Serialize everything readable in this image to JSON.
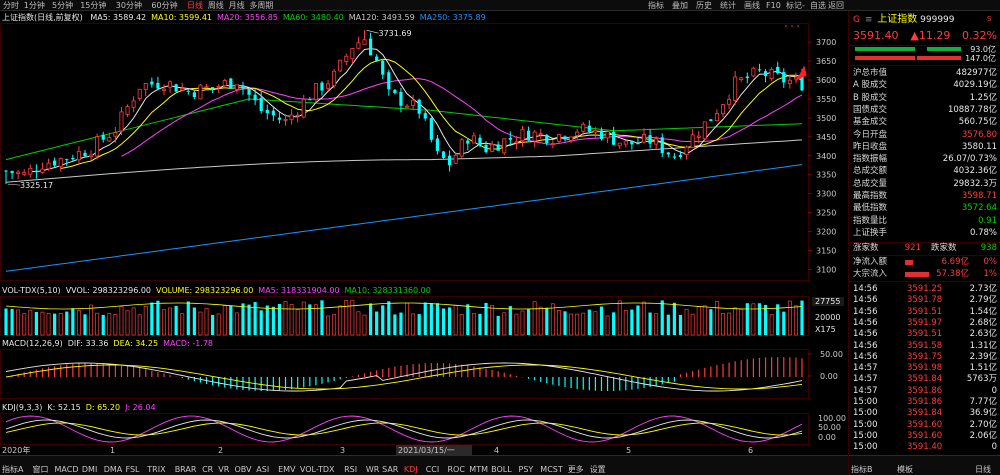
{
  "toolbar": {
    "periods": [
      "分时",
      "1分钟",
      "5分钟",
      "15分钟",
      "30分钟",
      "60分钟",
      "日线",
      "周线",
      "月线",
      "多周期"
    ],
    "active_period": "日线",
    "right_items": [
      "指标",
      "叠加",
      "历史",
      "统计",
      "画线",
      "F10",
      "标记",
      "-",
      "自选",
      "返回"
    ]
  },
  "main_chart": {
    "title": "上证指数(日线,前复权)",
    "ma": [
      {
        "label": "MA5: 3589.42",
        "color": "#e8e8e8"
      },
      {
        "label": "MA10: 3599.41",
        "color": "#ffff00"
      },
      {
        "label": "MA20: 3556.85",
        "color": "#ff40ff"
      },
      {
        "label": "MA60: 3480.40",
        "color": "#00d000"
      },
      {
        "label": "MA120: 3493.59",
        "color": "#c8c8c8"
      },
      {
        "label": "MA250: 3375.89",
        "color": "#1e90ff"
      }
    ],
    "high_label": "3731.69",
    "low_label": "3325.17",
    "y_ticks": [
      "3700",
      "3650",
      "3600",
      "3550",
      "3500",
      "3450",
      "3400",
      "3350",
      "3300",
      "3250",
      "3200",
      "3150",
      "3100"
    ]
  },
  "volume": {
    "legend": [
      {
        "label": "VOL-TDX(5,10)",
        "color": "#e8e8e8"
      },
      {
        "label": "VVOL: 298323296.00",
        "color": "#e8e8e8"
      },
      {
        "label": "VOLUME: 298323296.00",
        "color": "#ffff00"
      },
      {
        "label": "MA5: 318331904.00",
        "color": "#ff40ff"
      },
      {
        "label": "MA10: 328331360.00",
        "color": "#00d000"
      }
    ],
    "y_ticks": [
      "27755",
      "20000",
      "X175"
    ]
  },
  "macd": {
    "legend": [
      {
        "label": "MACD(12,26,9)",
        "color": "#e8e8e8"
      },
      {
        "label": "DIF: 33.36",
        "color": "#e8e8e8"
      },
      {
        "label": "DEA: 34.25",
        "color": "#ffff00"
      },
      {
        "label": "MACD: -1.78",
        "color": "#ff40ff"
      }
    ],
    "y_ticks": [
      "50.00",
      "0.00"
    ]
  },
  "kdj": {
    "legend": [
      {
        "label": "KDJ(9,3,3)",
        "color": "#e8e8e8"
      },
      {
        "label": "K: 52.15",
        "color": "#e8e8e8"
      },
      {
        "label": "D: 65.20",
        "color": "#ffff00"
      },
      {
        "label": "J: 26.04",
        "color": "#ff40ff"
      }
    ],
    "y_ticks": [
      "100.00",
      "50.00",
      "0.00"
    ]
  },
  "x_axis": {
    "labels": [
      "2020年",
      "1",
      "2",
      "3",
      "2021/03/15/一",
      "4",
      "5",
      "6"
    ]
  },
  "indicator_tabs": [
    "指标A",
    "窗口",
    "MACD",
    "DMI",
    "DMA",
    "FSL",
    "TRIX",
    "BRAR",
    "CR",
    "VR",
    "OBV",
    "ASI",
    "EMV",
    "VOL-TDX",
    "RSI",
    "WR",
    "SAR",
    "KDJ",
    "CCI",
    "ROC",
    "MTM",
    "BOLL",
    "PSY",
    "MCST",
    "更多",
    "设置"
  ],
  "active_tab": "KDJ",
  "panel": {
    "header_left": "G",
    "title": "上证指数",
    "code": "999999",
    "price": "3591.40",
    "change": "▲11.29",
    "change_pct": "0.32%",
    "bar1_value": "93.0亿",
    "bar2_value": "147.0亿",
    "stats": [
      {
        "label": "沪总市值",
        "value": "482977亿",
        "color": "#e8e8e8"
      },
      {
        "label": "A 股成交",
        "value": "4029.19亿",
        "color": "#e8e8e8"
      },
      {
        "label": "B 股成交",
        "value": "1.25亿",
        "color": "#e8e8e8"
      },
      {
        "label": "国债成交",
        "value": "10887.78亿",
        "color": "#e8e8e8"
      },
      {
        "label": "基金成交",
        "value": "560.75亿",
        "color": "#e8e8e8"
      },
      {
        "label": "今日开盘",
        "value": "3576.80",
        "color": "#ff3b3b"
      },
      {
        "label": "昨日收盘",
        "value": "3580.11",
        "color": "#e8e8e8"
      },
      {
        "label": "指数振幅",
        "value": "26.07/0.73%",
        "color": "#e8e8e8"
      },
      {
        "label": "总成交额",
        "value": "4032.36亿",
        "color": "#e8e8e8"
      },
      {
        "label": "总成交量",
        "value": "29832.3万",
        "color": "#e8e8e8"
      },
      {
        "label": "最高指数",
        "value": "3598.71",
        "color": "#ff3b3b"
      },
      {
        "label": "最低指数",
        "value": "3572.64",
        "color": "#00d000"
      },
      {
        "label": "指数量比",
        "value": "0.91",
        "color": "#00d000"
      },
      {
        "label": "上证换手",
        "value": "0.78%",
        "color": "#e8e8e8"
      }
    ],
    "rise_label": "涨家数",
    "rise": "921",
    "fall_label": "跌家数",
    "fall": "938",
    "flow": [
      {
        "label": "净流入额",
        "value": "6.69亿",
        "pct": "0%",
        "bar": 0.25
      },
      {
        "label": "大宗流入",
        "value": "57.38亿",
        "pct": "1%",
        "bar": 0.8
      }
    ],
    "ticks": [
      {
        "time": "14:56",
        "price": "3591.25",
        "vol": "2.73亿"
      },
      {
        "time": "14:56",
        "price": "3591.78",
        "vol": "2.79亿"
      },
      {
        "time": "14:56",
        "price": "3591.51",
        "vol": "1.54亿"
      },
      {
        "time": "14:56",
        "price": "3591.97",
        "vol": "2.68亿"
      },
      {
        "time": "14:56",
        "price": "3591.51",
        "vol": "2.63亿"
      },
      {
        "time": "14:56",
        "price": "3591.58",
        "vol": "1.31亿"
      },
      {
        "time": "14:56",
        "price": "3591.75",
        "vol": "2.39亿"
      },
      {
        "time": "14:57",
        "price": "3591.98",
        "vol": "1.51亿"
      },
      {
        "time": "14:57",
        "price": "3591.84",
        "vol": "5763万"
      },
      {
        "time": "14:57",
        "price": "3591.86",
        "vol": "0"
      },
      {
        "time": "15:00",
        "price": "3591.86",
        "vol": "7.77亿"
      },
      {
        "time": "15:00",
        "price": "3591.84",
        "vol": "36.9亿"
      },
      {
        "time": "15:00",
        "price": "3591.60",
        "vol": "2.70亿"
      },
      {
        "time": "15:00",
        "price": "3591.60",
        "vol": "2.06亿"
      },
      {
        "time": "15:00",
        "price": "3591.40",
        "vol": "0"
      }
    ],
    "tabs": [
      "指标B",
      "模板",
      "日线"
    ]
  }
}
